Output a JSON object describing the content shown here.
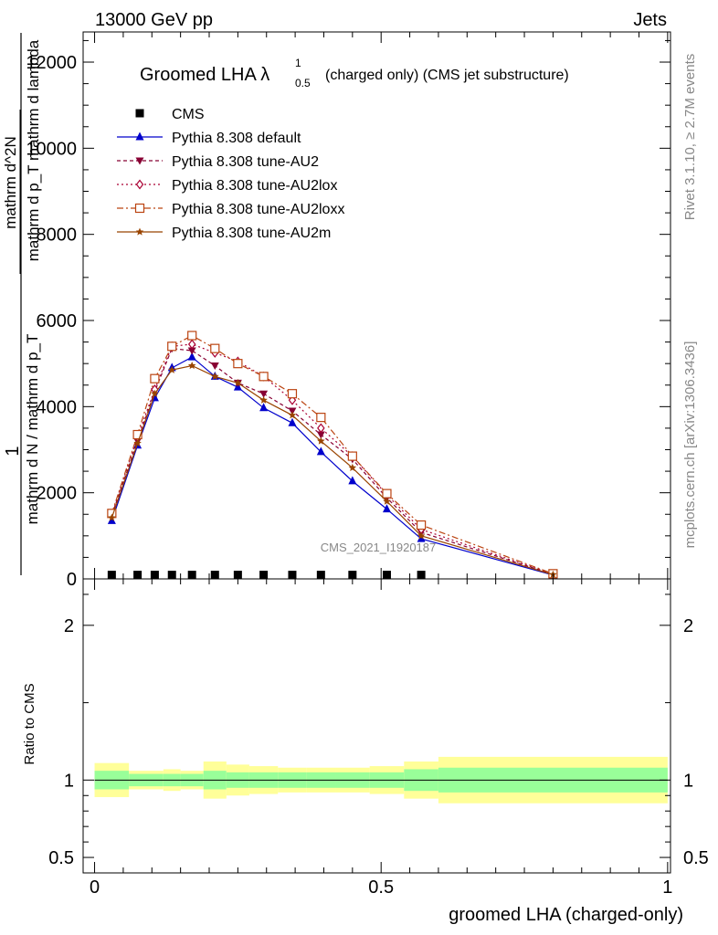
{
  "header": {
    "energy_label": "13000 GeV pp",
    "category_label": "Jets",
    "rivet_label": "Rivet 3.1.10, ≥ 2.7M events",
    "mcplots_label": "mcplots.cern.ch [arXiv:1306.3436]",
    "analysis_id": "CMS_2021_I1920187"
  },
  "title": {
    "main": "Groomed LHA λ",
    "sup": "1",
    "sub": "0.5",
    "rest": "(charged only) (CMS jet substructure)"
  },
  "axes": {
    "main_ylabel_num": "1",
    "main_ylabel_den": "mathrm d N / mathrm d p_T",
    "main_ylabel_frac_num": "mathrm d^2N",
    "main_ylabel_frac_den": "mathrm d p_T mathrm d lambda",
    "ratio_ylabel": "Ratio to CMS",
    "xlabel": "groomed LHA (charged-only)"
  },
  "colors": {
    "cms": "#000000",
    "default": "#0000cc",
    "au2": "#880033",
    "au2lox": "#aa0033",
    "au2loxx": "#bb4411",
    "au2m": "#994400",
    "band_inner": "#99ff99",
    "band_outer": "#ffff99"
  },
  "chart_data": {
    "type": "line",
    "x_edges": [
      0,
      0.06,
      0.09,
      0.12,
      0.15,
      0.19,
      0.23,
      0.27,
      0.32,
      0.37,
      0.42,
      0.48,
      0.54,
      0.6,
      1.0
    ],
    "x": [
      0.03,
      0.075,
      0.105,
      0.135,
      0.17,
      0.21,
      0.25,
      0.295,
      0.345,
      0.395,
      0.45,
      0.51,
      0.57,
      0.8
    ],
    "xlim": [
      -0.02,
      1.005
    ],
    "ylim": [
      0,
      12700
    ],
    "ratio_ylim": [
      0.4,
      2.3
    ],
    "main_yticks": [
      0,
      2000,
      4000,
      6000,
      8000,
      10000,
      12000
    ],
    "main_ytick_labels": [
      "0",
      "2000",
      "4000",
      "6000",
      "8000",
      "10000",
      "12000"
    ],
    "ratio_yticks": [
      0.5,
      1,
      2
    ],
    "ratio_ytick_labels": [
      "0.5",
      "1",
      "2"
    ],
    "xticks": [
      0,
      0.5,
      1
    ],
    "xtick_labels": [
      "0",
      "0.5",
      "1"
    ],
    "series": [
      {
        "name": "CMS",
        "key": "cms",
        "marker": "square",
        "dash": "",
        "values": [
          30,
          30,
          30,
          30,
          30,
          30,
          30,
          30,
          30,
          30,
          30,
          30,
          30,
          30
        ]
      },
      {
        "name": "Pythia 8.308 default",
        "key": "default",
        "marker": "triangle-up",
        "dash": "",
        "values": [
          1350,
          3100,
          4200,
          4900,
          5150,
          4700,
          4450,
          3970,
          3620,
          2950,
          2270,
          1620,
          930,
          90
        ]
      },
      {
        "name": "Pythia 8.308 tune-AU2",
        "key": "au2",
        "marker": "triangle-down",
        "dash": "4,3",
        "values": [
          1480,
          3200,
          4350,
          5350,
          5300,
          4950,
          4550,
          4300,
          3900,
          3350,
          2780,
          1880,
          1080,
          110
        ]
      },
      {
        "name": "Pythia 8.308 tune-AU2lox",
        "key": "au2lox",
        "marker": "diamond",
        "dash": "2,3",
        "values": [
          1500,
          3300,
          4400,
          5400,
          5450,
          5250,
          5050,
          4700,
          4150,
          3500,
          2850,
          1950,
          1150,
          110
        ]
      },
      {
        "name": "Pythia 8.308 tune-AU2loxx",
        "key": "au2loxx",
        "marker": "square-open",
        "dash": "7,3,2,3",
        "values": [
          1520,
          3350,
          4650,
          5400,
          5650,
          5350,
          5000,
          4700,
          4300,
          3750,
          2850,
          1980,
          1250,
          120
        ]
      },
      {
        "name": "Pythia 8.308 tune-AU2m",
        "key": "au2m",
        "marker": "star",
        "dash": "",
        "values": [
          1420,
          3150,
          4300,
          4850,
          4950,
          4700,
          4550,
          4150,
          3800,
          3200,
          2580,
          1800,
          1000,
          100
        ]
      }
    ],
    "ratio_band_inner": [
      0.06,
      0.04,
      0.04,
      0.04,
      0.04,
      0.06,
      0.05,
      0.05,
      0.05,
      0.05,
      0.05,
      0.05,
      0.07,
      0.08
    ],
    "ratio_band_outer": [
      0.11,
      0.06,
      0.06,
      0.07,
      0.06,
      0.12,
      0.1,
      0.09,
      0.08,
      0.08,
      0.08,
      0.09,
      0.12,
      0.15
    ],
    "ratio_reference": 1
  }
}
